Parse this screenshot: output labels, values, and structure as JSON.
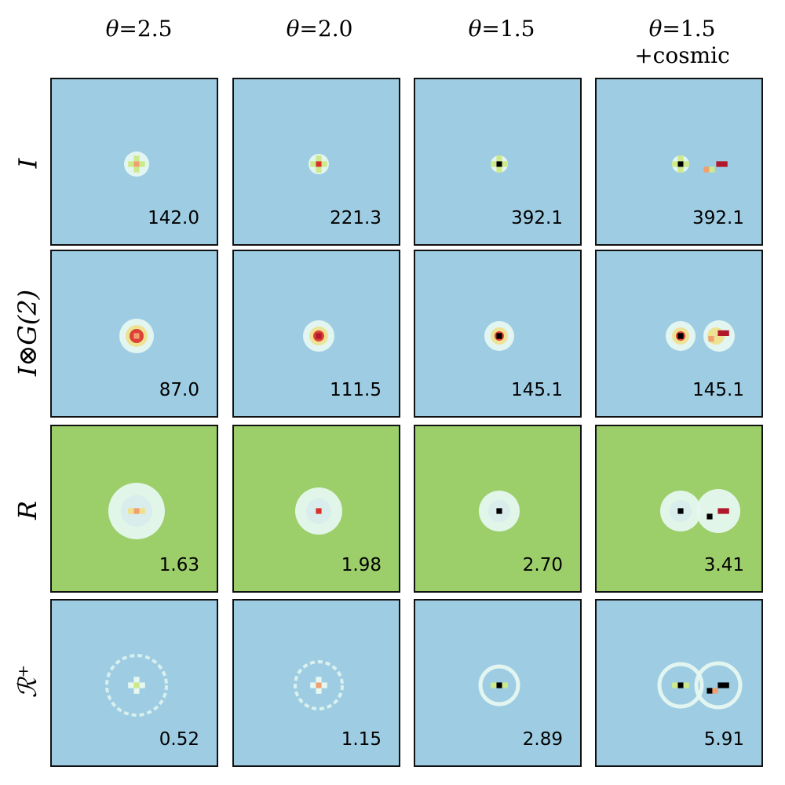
{
  "colors": {
    "blue_bg": "#9ecde3",
    "green_bg": "#9ccf6a",
    "light": "#e6f7f0",
    "ring": "#cfe6ef",
    "lime": "#cde98a",
    "yellow": "#f0e08a",
    "orange": "#f0a070",
    "red": "#d9302a",
    "dark_red": "#b2182b",
    "black": "#000000"
  },
  "columns": [
    {
      "theta_label": "θ",
      "theta_value": "=2.5",
      "sub": ""
    },
    {
      "theta_label": "θ",
      "theta_value": "=2.0",
      "sub": ""
    },
    {
      "theta_label": "θ",
      "theta_value": "=1.5",
      "sub": ""
    },
    {
      "theta_label": "θ",
      "theta_value": "=1.5",
      "sub": "+cosmic"
    }
  ],
  "rows": [
    {
      "label": "I",
      "values": [
        "142.0",
        "221.3",
        "392.1",
        "392.1"
      ]
    },
    {
      "label": "I⊗G(2)",
      "values": [
        "87.0",
        "111.5",
        "145.1",
        "145.1"
      ]
    },
    {
      "label": "R",
      "values": [
        "1.63",
        "1.98",
        "2.70",
        "3.41"
      ]
    },
    {
      "label": "ℛ⁺",
      "values": [
        "0.52",
        "1.15",
        "2.89",
        "5.91"
      ]
    }
  ]
}
